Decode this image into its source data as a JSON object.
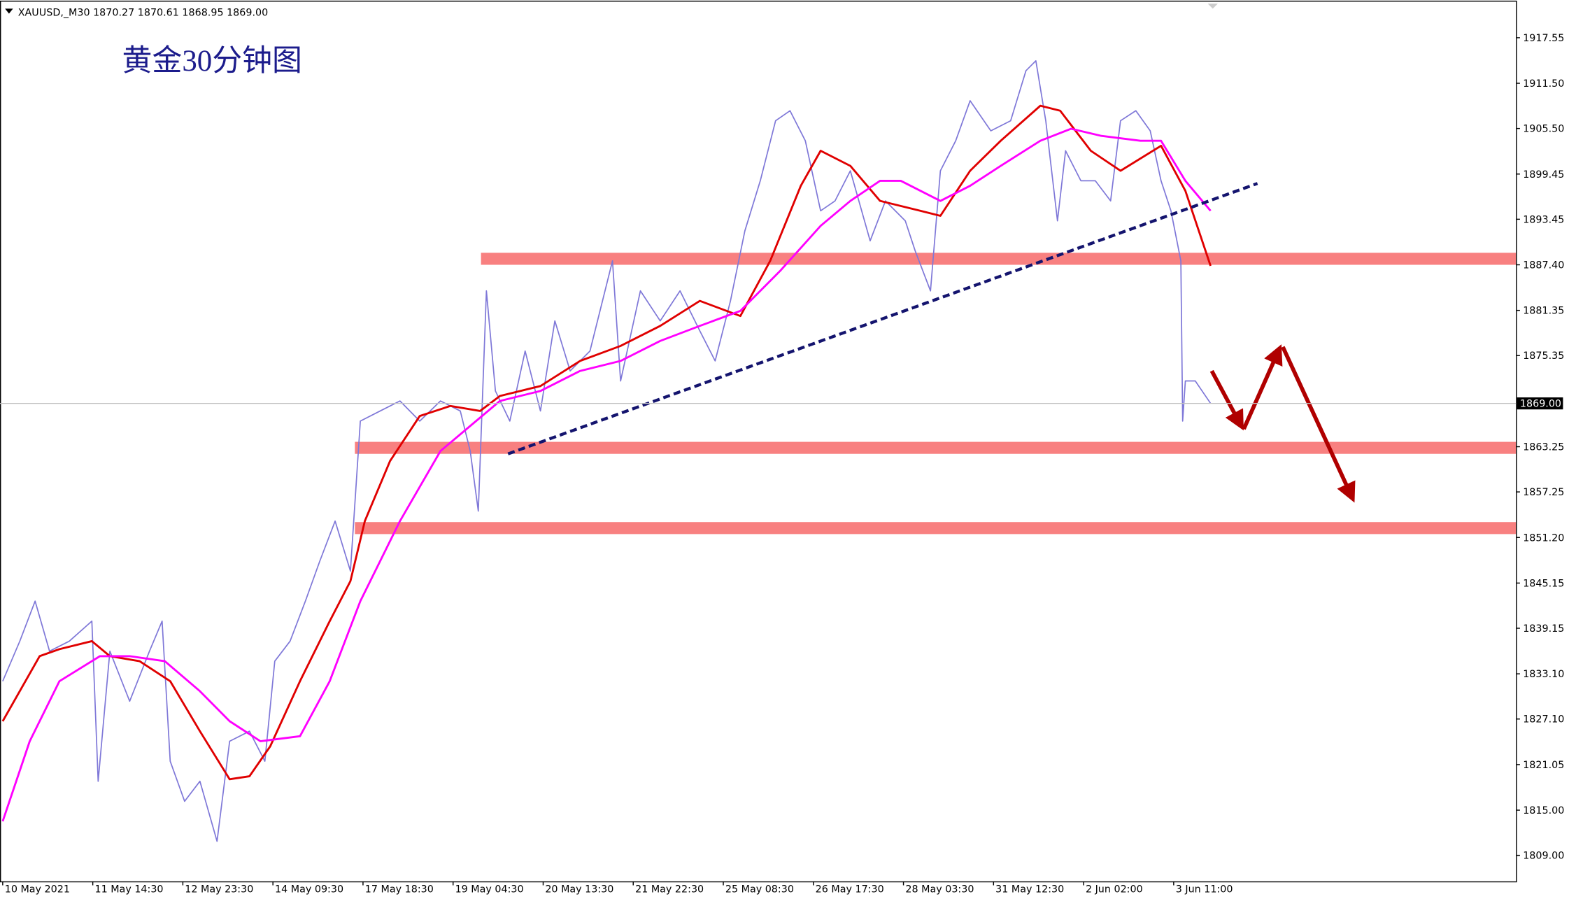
{
  "header": "XAUUSD,_M30  1870.27 1870.61 1868.95 1869.00",
  "chart_data": {
    "type": "line",
    "title": "黄金30分钟图",
    "xlim": [
      -0.03,
      16.8
    ],
    "ylim": [
      1805.55,
      1922.47
    ],
    "xticks": [
      {
        "value": 0,
        "label": "10 May 2021"
      },
      {
        "value": 1,
        "label": "11 May 14:30"
      },
      {
        "value": 2,
        "label": "12 May 23:30"
      },
      {
        "value": 3,
        "label": "14 May 09:30"
      },
      {
        "value": 4,
        "label": "17 May 18:30"
      },
      {
        "value": 5,
        "label": "19 May 04:30"
      },
      {
        "value": 6,
        "label": "20 May 13:30"
      },
      {
        "value": 7,
        "label": "21 May 22:30"
      },
      {
        "value": 8,
        "label": "25 May 08:30"
      },
      {
        "value": 9,
        "label": "26 May 17:30"
      },
      {
        "value": 10,
        "label": "28 May 03:30"
      },
      {
        "value": 11,
        "label": "31 May 12:30"
      },
      {
        "value": 12,
        "label": "2 Jun 02:00"
      },
      {
        "value": 13,
        "label": "3 Jun 11:00"
      }
    ],
    "yticks": [
      1917.55,
      {
        "value": 1911.5,
        "label": "1911.50"
      },
      {
        "value": 1905.5,
        "label": "1905.50"
      },
      1899.45,
      1893.45,
      {
        "value": 1887.4,
        "label": "1887.40"
      },
      1881.35,
      1875.35,
      1863.25,
      1857.25,
      {
        "value": 1851.2,
        "label": "1851.20"
      },
      1845.15,
      1839.15,
      {
        "value": 1833.1,
        "label": "1833.10"
      },
      {
        "value": 1827.1,
        "label": "1827.10"
      },
      1821.05,
      {
        "value": 1815,
        "label": "1815.00"
      },
      {
        "value": 1809,
        "label": "1809.00"
      }
    ],
    "grid": false,
    "current": {
      "value": 1869,
      "label": "1869.00"
    },
    "series": [
      {
        "color": "#7f78d8",
        "x": [
          0,
          0.19,
          0.36,
          0.52,
          0.74,
          0.99,
          1.06,
          1.19,
          1.41,
          1.63,
          1.77,
          1.86,
          2.02,
          2.19,
          2.38,
          2.52,
          2.74,
          2.91,
          3.02,
          3.19,
          3.36,
          3.52,
          3.69,
          3.86,
          3.97,
          4.19,
          4.41,
          4.63,
          4.86,
          5.08,
          5.19,
          5.28,
          5.37,
          5.47,
          5.63,
          5.8,
          5.97,
          6.13,
          6.3,
          6.52,
          6.77,
          6.86,
          7.08,
          7.3,
          7.52,
          7.74,
          7.91,
          8.08,
          8.24,
          8.41,
          8.58,
          8.74,
          8.91,
          9.08,
          9.24,
          9.41,
          9.63,
          9.8,
          10.02,
          10.13,
          10.3,
          10.41,
          10.58,
          10.74,
          10.97,
          11.19,
          11.36,
          11.47,
          11.58,
          11.71,
          11.8,
          11.97,
          12.13,
          12.3,
          12.41,
          12.58,
          12.74,
          12.86,
          12.97,
          13.08,
          13.1,
          13.13,
          13.24,
          13.41
        ],
        "values": [
          1832.12,
          1837.44,
          1842.75,
          1836.11,
          1837.44,
          1840.09,
          1818.84,
          1836.11,
          1829.46,
          1836.11,
          1840.09,
          1821.49,
          1816.18,
          1818.84,
          1810.86,
          1824.15,
          1825.48,
          1821.49,
          1834.78,
          1837.44,
          1842.75,
          1848.06,
          1853.38,
          1846.74,
          1866.66,
          1867.99,
          1869.32,
          1866.66,
          1869.32,
          1867.99,
          1862.68,
          1854.71,
          1883.94,
          1870.65,
          1866.66,
          1875.96,
          1867.99,
          1879.95,
          1873.31,
          1875.96,
          1887.92,
          1871.98,
          1883.94,
          1879.95,
          1883.94,
          1878.62,
          1874.64,
          1882.61,
          1891.91,
          1898.55,
          1906.52,
          1907.85,
          1903.87,
          1894.57,
          1895.89,
          1899.88,
          1890.58,
          1895.89,
          1893.24,
          1889.25,
          1883.94,
          1899.88,
          1903.87,
          1909.18,
          1905.19,
          1906.52,
          1913.17,
          1914.49,
          1906.52,
          1893.24,
          1902.54,
          1898.55,
          1898.55,
          1895.89,
          1906.52,
          1907.85,
          1905.19,
          1898.55,
          1894.57,
          1887.92,
          1866.66,
          1871.98,
          1871.98,
          1869
        ]
      },
      {
        "color": "#e00000",
        "x": [
          0,
          0.41,
          0.63,
          0.99,
          1.19,
          1.52,
          1.86,
          2.19,
          2.52,
          2.74,
          2.97,
          3.3,
          3.63,
          3.86,
          4.02,
          4.3,
          4.63,
          4.97,
          5.3,
          5.52,
          5.97,
          6.41,
          6.86,
          7.3,
          7.74,
          8.19,
          8.52,
          8.86,
          9.08,
          9.41,
          9.74,
          10.19,
          10.41,
          10.74,
          11.08,
          11.52,
          11.74,
          12.08,
          12.41,
          12.86,
          13.13,
          13.41
        ],
        "values": [
          1826.81,
          1835.44,
          1836.37,
          1837.44,
          1835.44,
          1834.78,
          1832.12,
          1825.48,
          1819.1,
          1819.5,
          1823.49,
          1832.12,
          1840.09,
          1845.41,
          1853.38,
          1861.35,
          1867.33,
          1868.66,
          1867.99,
          1869.99,
          1871.31,
          1874.64,
          1876.63,
          1879.29,
          1882.61,
          1880.61,
          1887.92,
          1897.89,
          1902.54,
          1900.54,
          1895.89,
          1894.57,
          1893.9,
          1899.88,
          1903.87,
          1908.52,
          1907.85,
          1902.54,
          1899.88,
          1903.2,
          1897.22,
          1887.26
        ]
      },
      {
        "color": "#ff00ff",
        "x": [
          0,
          0.3,
          0.63,
          1.08,
          1.41,
          1.8,
          2.19,
          2.52,
          2.86,
          3.3,
          3.63,
          3.97,
          4.41,
          4.86,
          5.19,
          5.52,
          5.97,
          6.41,
          6.86,
          7.3,
          7.74,
          8.19,
          8.63,
          9.08,
          9.41,
          9.74,
          9.97,
          10.41,
          10.74,
          11.08,
          11.52,
          11.86,
          12.19,
          12.63,
          12.86,
          13.13,
          13.41
        ],
        "values": [
          1813.52,
          1824.15,
          1832.12,
          1835.44,
          1835.44,
          1834.78,
          1830.79,
          1826.81,
          1824.15,
          1824.81,
          1832.12,
          1842.75,
          1853.38,
          1862.68,
          1866,
          1869.32,
          1870.65,
          1873.31,
          1874.64,
          1877.29,
          1879.29,
          1881.28,
          1886.59,
          1892.57,
          1895.89,
          1898.55,
          1898.55,
          1895.89,
          1897.89,
          1900.54,
          1903.87,
          1905.46,
          1904.53,
          1903.87,
          1903.87,
          1898.55,
          1894.57
        ]
      }
    ],
    "zones": [
      {
        "y": 1888.2,
        "x": 5.31,
        "color": "#f88080"
      },
      {
        "y": 1863.1,
        "x": 3.91,
        "color": "#f88080"
      },
      {
        "y": 1852.45,
        "x": 3.91,
        "color": "#f88080"
      }
    ],
    "trendline": {
      "x": [
        5.61,
        13.93
      ],
      "y": [
        1862.3,
        1898.2
      ],
      "color": "#14146e"
    }
  }
}
